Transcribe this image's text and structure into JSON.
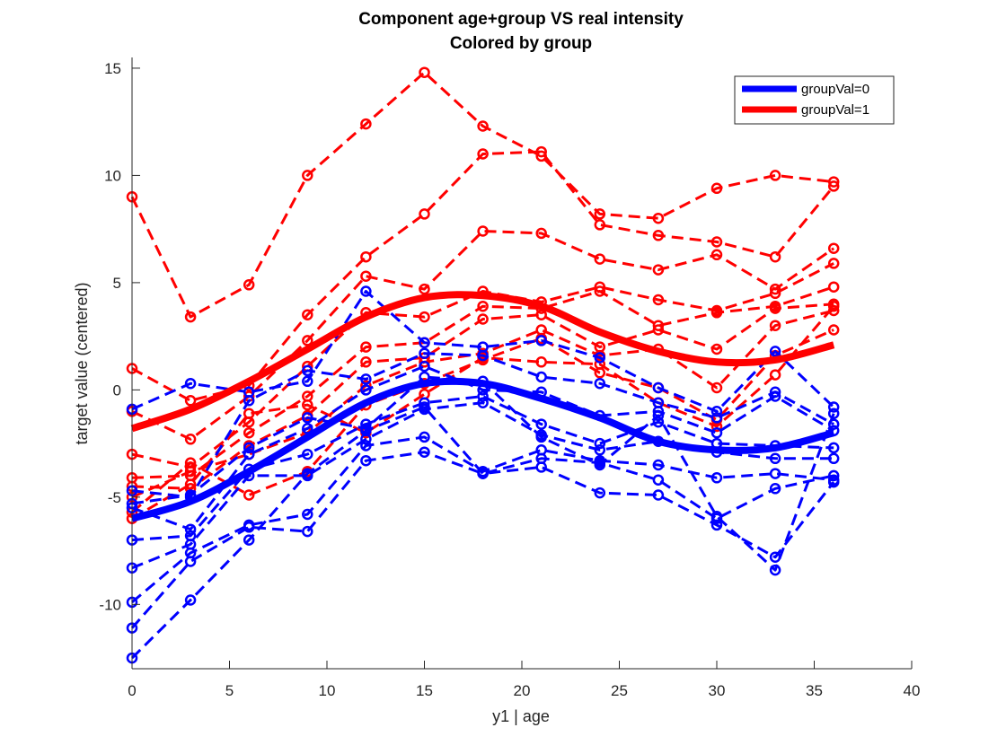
{
  "chart_data": {
    "type": "line",
    "title": "Component age+group VS real intensity",
    "subtitle": "Colored by group",
    "xlabel": "y1 | age",
    "ylabel": "target value (centered)",
    "xlim": [
      0,
      40
    ],
    "ylim": [
      -13,
      15.5
    ],
    "xticks": [
      0,
      5,
      10,
      15,
      20,
      25,
      30,
      35,
      40
    ],
    "yticks": [
      -10,
      -5,
      0,
      5,
      10,
      15
    ],
    "grid": false,
    "legend_position": "top-right",
    "colors": {
      "group0": "#0000ff",
      "group1": "#ff0000",
      "axis": "#262626"
    },
    "fit_lines": [
      {
        "name": "groupVal=0",
        "color": "#0000ff",
        "x": [
          0,
          3,
          6,
          9,
          12,
          15,
          18,
          21,
          24,
          27,
          30,
          33,
          36
        ],
        "y": [
          -6.0,
          -5.2,
          -3.8,
          -2.2,
          -0.6,
          0.3,
          0.3,
          -0.4,
          -1.3,
          -2.4,
          -2.8,
          -2.7,
          -2.0
        ]
      },
      {
        "name": "groupVal=1",
        "color": "#ff0000",
        "x": [
          0,
          3,
          6,
          9,
          12,
          15,
          18,
          21,
          24,
          27,
          30,
          33,
          36
        ],
        "y": [
          -1.8,
          -0.9,
          0.4,
          1.9,
          3.4,
          4.3,
          4.4,
          3.9,
          2.7,
          1.8,
          1.3,
          1.4,
          2.1
        ]
      }
    ],
    "subject_series": [
      {
        "group": 1,
        "x": [
          0,
          3,
          6,
          9,
          12,
          15,
          18,
          21,
          24,
          27,
          30,
          33,
          36
        ],
        "y": [
          9.0,
          3.4,
          4.9,
          10.0,
          12.4,
          14.8,
          12.3,
          10.9,
          8.2,
          8.0,
          9.4,
          10.0,
          9.7
        ]
      },
      {
        "group": 1,
        "x": [
          0,
          3,
          6,
          9,
          12,
          15,
          18,
          21,
          24,
          27,
          30,
          33,
          36
        ],
        "y": [
          1.0,
          -0.5,
          0.2,
          3.5,
          6.2,
          8.2,
          11.0,
          11.1,
          7.7,
          7.2,
          6.9,
          6.2,
          9.5
        ]
      },
      {
        "group": 1,
        "x": [
          0,
          3,
          6,
          9,
          12,
          15,
          18,
          21,
          24,
          27,
          30,
          33,
          36
        ],
        "y": [
          -1.0,
          -2.3,
          -0.3,
          2.3,
          5.3,
          4.7,
          7.4,
          7.3,
          6.1,
          5.6,
          6.3,
          4.7,
          6.6
        ]
      },
      {
        "group": 1,
        "x": [
          0,
          3,
          6,
          9,
          12,
          15,
          18,
          21,
          24,
          27,
          30,
          33,
          36
        ],
        "y": [
          -3.0,
          -3.6,
          -1.5,
          1.1,
          3.6,
          3.4,
          4.6,
          4.1,
          4.8,
          4.2,
          3.7,
          4.5,
          5.9
        ]
      },
      {
        "group": 1,
        "x": [
          0,
          3,
          6,
          9,
          12,
          15,
          18,
          21,
          24,
          27,
          30,
          33,
          36
        ],
        "y": [
          -4.1,
          -4.0,
          -2.0,
          -0.3,
          2.0,
          2.2,
          3.9,
          3.8,
          4.6,
          3.0,
          3.6,
          3.9,
          4.8
        ]
      },
      {
        "group": 1,
        "x": [
          0,
          3,
          6,
          9,
          12,
          15,
          18,
          21,
          24,
          27,
          30,
          33,
          36
        ],
        "y": [
          -4.5,
          -4.6,
          -2.6,
          -1.2,
          1.3,
          1.5,
          3.3,
          3.5,
          2.0,
          2.8,
          1.9,
          3.8,
          4.0
        ]
      },
      {
        "group": 1,
        "x": [
          0,
          3,
          6,
          9,
          12,
          15,
          18,
          21,
          24,
          27,
          30,
          33,
          36
        ],
        "y": [
          -5.0,
          -3.8,
          -3.0,
          -2.0,
          0.2,
          1.3,
          1.7,
          2.8,
          1.6,
          1.9,
          0.1,
          3.0,
          3.7
        ]
      },
      {
        "group": 1,
        "x": [
          0,
          3,
          6,
          9,
          12,
          15,
          18,
          21,
          24,
          27,
          30,
          33,
          36
        ],
        "y": [
          -5.7,
          -3.4,
          -4.9,
          -3.8,
          -0.7,
          0.3,
          1.4,
          2.4,
          0.8,
          0.1,
          -1.4,
          1.6,
          2.8
        ]
      },
      {
        "group": 1,
        "x": [
          0,
          3,
          6,
          9,
          12,
          15,
          18,
          21,
          24,
          27,
          30,
          33,
          36
        ],
        "y": [
          -6.0,
          -4.4,
          -1.1,
          -0.7,
          -2.0,
          -0.2,
          1.5,
          1.3,
          1.2,
          -0.6,
          -1.7,
          0.7,
          3.9
        ]
      },
      {
        "group": 0,
        "x": [
          0,
          3,
          6,
          9,
          12,
          15,
          18,
          21,
          24,
          27,
          30,
          33,
          36
        ],
        "y": [
          -0.9,
          0.3,
          -0.1,
          0.4,
          4.6,
          2.2,
          2.0,
          2.3,
          1.5,
          0.1,
          -1.0,
          1.8,
          -0.8
        ]
      },
      {
        "group": 0,
        "x": [
          0,
          3,
          6,
          9,
          12,
          15,
          18,
          21,
          24,
          27,
          30,
          33,
          36
        ],
        "y": [
          -4.7,
          -5.0,
          -0.5,
          0.9,
          0.5,
          1.7,
          1.6,
          0.6,
          0.3,
          -0.6,
          -1.3,
          -0.1,
          -1.6
        ]
      },
      {
        "group": 0,
        "x": [
          0,
          3,
          6,
          9,
          12,
          15,
          18,
          21,
          24,
          27,
          30,
          33,
          36
        ],
        "y": [
          -5.5,
          -6.5,
          -3.0,
          -1.8,
          0.0,
          1.1,
          0.0,
          -0.1,
          -1.2,
          -1.0,
          -2.0,
          -0.3,
          -1.9
        ]
      },
      {
        "group": 0,
        "x": [
          0,
          3,
          6,
          9,
          12,
          15,
          18,
          21,
          24,
          27,
          30,
          33,
          36
        ],
        "y": [
          -7.0,
          -6.8,
          -3.7,
          -3.0,
          -1.6,
          -0.6,
          -0.3,
          -1.6,
          -2.5,
          -1.5,
          -2.5,
          -2.6,
          -2.7
        ]
      },
      {
        "group": 0,
        "x": [
          0,
          3,
          6,
          9,
          12,
          15,
          18,
          21,
          24,
          27,
          30,
          33,
          36
        ],
        "y": [
          -8.3,
          -7.2,
          -4.0,
          -4.0,
          -2.3,
          -0.9,
          -0.6,
          -2.1,
          -2.8,
          -2.4,
          -2.9,
          -3.2,
          -3.2
        ]
      },
      {
        "group": 0,
        "x": [
          0,
          3,
          6,
          9,
          12,
          15,
          18,
          21,
          24,
          27,
          30,
          33,
          36
        ],
        "y": [
          -9.9,
          -7.6,
          -6.3,
          -5.8,
          -2.6,
          -2.2,
          -3.8,
          -2.8,
          -3.3,
          -3.5,
          -4.1,
          -3.9,
          -4.2
        ]
      },
      {
        "group": 0,
        "x": [
          0,
          3,
          6,
          9,
          12,
          15,
          18,
          21,
          24,
          27,
          30,
          33,
          36
        ],
        "y": [
          -11.1,
          -8.0,
          -6.4,
          -6.6,
          -3.3,
          -2.9,
          -3.9,
          -3.2,
          -3.4,
          -4.2,
          -6.0,
          -4.6,
          -4.0
        ]
      },
      {
        "group": 0,
        "x": [
          0,
          3,
          6,
          9,
          12,
          15,
          18,
          21,
          24,
          27,
          30,
          33,
          36
        ],
        "y": [
          -12.5,
          -9.8,
          -7.0,
          -3.9,
          -1.9,
          -0.8,
          -3.9,
          -3.6,
          -4.8,
          -4.9,
          -6.3,
          -7.8,
          -4.3
        ]
      },
      {
        "group": 0,
        "x": [
          0,
          3,
          6,
          9,
          12,
          15,
          18,
          21,
          24,
          27,
          30,
          33,
          36
        ],
        "y": [
          -5.3,
          -4.9,
          -2.7,
          -1.3,
          -1.8,
          0.6,
          0.4,
          -2.2,
          -3.5,
          -1.2,
          -5.9,
          -8.4,
          -1.1
        ]
      }
    ]
  },
  "legend": {
    "items": [
      {
        "label": "groupVal=0",
        "color": "#0000ff"
      },
      {
        "label": "groupVal=1",
        "color": "#ff0000"
      }
    ]
  }
}
